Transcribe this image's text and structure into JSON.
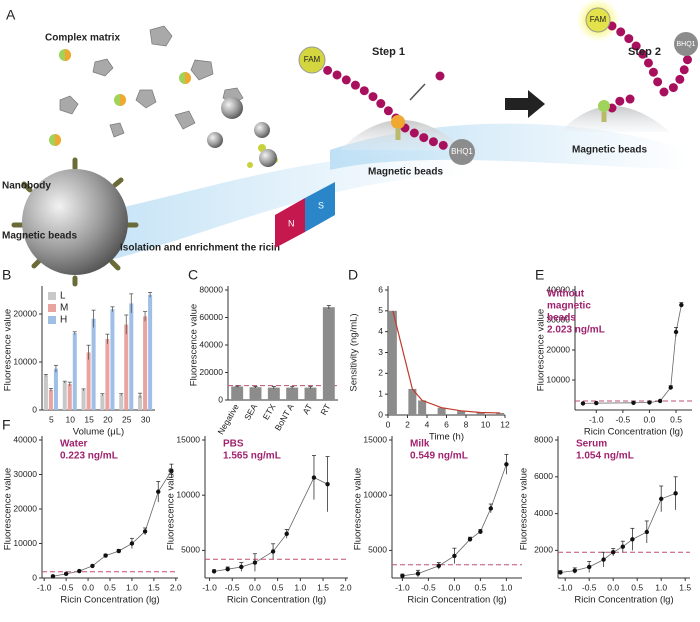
{
  "illustration": {
    "panel": "A",
    "complex_matrix": "Complex matrix",
    "nanobody": "Nanobody",
    "magnetic_beads_left": "Magnetic beads",
    "isolation": "Isolation and enrichment the ricin",
    "step1": "Step 1",
    "step2": "Step 2",
    "fam": "FAM",
    "bhq1": "BHQ1",
    "beads_label": "Magnetic beads",
    "magnet_n": "N",
    "magnet_s": "S"
  },
  "chart_data": [
    {
      "type": "grouped_bar",
      "panel": "B",
      "ylabel": "Fluorescence value",
      "xlabel": "Volume (μL)",
      "categories": [
        "5",
        "10",
        "15",
        "20",
        "25",
        "30"
      ],
      "ylim": [
        0,
        25000
      ],
      "yticks": [
        0,
        10000,
        20000
      ],
      "legend": "top-left",
      "series": [
        {
          "name": "L",
          "color": "#c8c8c8",
          "values": [
            7200,
            5800,
            4200,
            3200,
            3200,
            3000
          ],
          "errors": [
            200,
            200,
            200,
            200,
            200,
            500
          ]
        },
        {
          "name": "M",
          "color": "#e9a3a0",
          "values": [
            4200,
            5400,
            12000,
            14800,
            17800,
            19500
          ],
          "errors": [
            300,
            400,
            1500,
            1000,
            2000,
            1000
          ]
        },
        {
          "name": "H",
          "color": "#9fbfe6",
          "values": [
            8600,
            16000,
            19000,
            21000,
            22200,
            24000
          ],
          "errors": [
            700,
            300,
            1800,
            500,
            2000,
            500
          ]
        }
      ]
    },
    {
      "type": "bar",
      "panel": "C",
      "ylabel": "Fluorescence value",
      "categories": [
        "Negative",
        "SEA",
        "ETX",
        "BoNT A",
        "AT",
        "RT"
      ],
      "values": [
        9800,
        9300,
        9000,
        9000,
        9000,
        67500
      ],
      "errors": [
        400,
        500,
        800,
        700,
        700,
        1200
      ],
      "color": "#8c8c8c",
      "ylim": [
        0,
        80000
      ],
      "yticks": [
        0,
        20000,
        40000,
        60000,
        80000
      ],
      "threshold": 10500,
      "threshold_color": "#c0506e"
    },
    {
      "type": "bar_line",
      "panel": "D",
      "ylabel": "Sensitivity (ng/mL)",
      "xlabel": "Time (h)",
      "x": [
        0.5,
        2.5,
        3.5,
        5.5,
        7.5,
        9.5,
        11.5
      ],
      "values": [
        5.0,
        1.25,
        0.7,
        0.35,
        0.2,
        0.12,
        0.1
      ],
      "color": "#8c8c8c",
      "line_color": "#c0392b",
      "xlim": [
        0,
        12
      ],
      "xticks": [
        0,
        2,
        4,
        6,
        8,
        10,
        12
      ],
      "ylim": [
        0,
        6
      ],
      "yticks": [
        0,
        1,
        2,
        3,
        4,
        5,
        6
      ]
    },
    {
      "type": "scatter",
      "panel": "E",
      "ylabel": "Fluorescence value",
      "xlabel": "Ricin Concentration (lg)",
      "annotation": [
        "Without",
        "magnetic",
        "beads",
        "2.023 ng/mL"
      ],
      "annotation_color": "#a0226e",
      "color": "#111",
      "line_color": "#666",
      "threshold": 3000,
      "threshold_color": "#c0506e",
      "x": [
        -1.25,
        -1.0,
        -0.3,
        0.0,
        0.2,
        0.4,
        0.5,
        0.6
      ],
      "values": [
        2200,
        2300,
        2400,
        2500,
        3000,
        7500,
        26000,
        35000
      ],
      "errors": [
        200,
        200,
        200,
        200,
        300,
        600,
        1500,
        800
      ],
      "xlim": [
        -1.4,
        0.8
      ],
      "xticks": [
        {
          "value": -1.0,
          "label": "-1.0"
        },
        -0.5,
        {
          "value": 0.0,
          "label": "0.0"
        },
        0.5
      ],
      "ylim": [
        0,
        40000
      ],
      "yticks": [
        10000,
        20000,
        30000,
        40000
      ]
    },
    {
      "type": "scatter",
      "panel": "F",
      "ylabel": "Fluorescence value",
      "xlabel": "Ricin Concentration (lg)",
      "annotation": [
        "Water",
        "0.223 ng/mL"
      ],
      "annotation_color": "#a0226e",
      "color": "#111",
      "line_color": "#666",
      "threshold": 1800,
      "threshold_color": "#c0506e",
      "x": [
        -0.8,
        -0.5,
        -0.2,
        0.1,
        0.4,
        0.7,
        1.0,
        1.3,
        1.6,
        1.9
      ],
      "values": [
        500,
        1200,
        2000,
        3500,
        6500,
        7800,
        10000,
        13500,
        25000,
        31000
      ],
      "errors": [
        200,
        200,
        300,
        300,
        400,
        500,
        1500,
        1000,
        3000,
        2000
      ],
      "xlim": [
        -1.05,
        2.05
      ],
      "xticks": [
        {
          "value": -1.0,
          "label": "-1.0"
        },
        -0.5,
        {
          "value": 0.0,
          "label": "0.0"
        },
        0.5,
        {
          "value": 1.0,
          "label": "1.0"
        },
        1.5,
        {
          "value": 2.0,
          "label": "2.0"
        }
      ],
      "ylim": [
        0,
        40000
      ],
      "yticks": [
        0,
        10000,
        20000,
        30000,
        40000
      ]
    },
    {
      "type": "scatter",
      "ylabel": "Fluorescence value",
      "xlabel": "Ricin Concentration (lg)",
      "annotation": [
        "PBS",
        "1.565 ng/mL"
      ],
      "annotation_color": "#a0226e",
      "color": "#111",
      "line_color": "#666",
      "threshold": 4200,
      "threshold_color": "#c0506e",
      "x": [
        -0.9,
        -0.6,
        -0.3,
        0.0,
        0.4,
        0.7,
        1.3,
        1.6
      ],
      "values": [
        3100,
        3300,
        3500,
        3900,
        4900,
        6500,
        11600,
        11000
      ],
      "errors": [
        150,
        200,
        400,
        800,
        700,
        400,
        2000,
        2500
      ],
      "xlim": [
        -1.1,
        2.05
      ],
      "xticks": [
        {
          "value": -1.0,
          "label": "-1.0"
        },
        -0.5,
        {
          "value": 0.0,
          "label": "0.0"
        },
        0.5,
        {
          "value": 1.0,
          "label": "1.0"
        },
        1.5,
        {
          "value": 2.0,
          "label": "2.0"
        }
      ],
      "ylim": [
        2500,
        15000
      ],
      "yticks": [
        5000,
        10000,
        15000
      ]
    },
    {
      "type": "scatter",
      "ylabel": "Fluorescence value",
      "xlabel": "Ricin Concentration (lg)",
      "annotation": [
        "Milk",
        "0.549 ng/mL"
      ],
      "annotation_color": "#a0226e",
      "color": "#111",
      "line_color": "#666",
      "threshold": 3700,
      "threshold_color": "#c0506e",
      "x": [
        -1.0,
        -0.7,
        -0.3,
        0.0,
        0.3,
        0.5,
        0.7,
        1.0
      ],
      "values": [
        2700,
        2900,
        3600,
        4500,
        6000,
        6700,
        8800,
        12800
      ],
      "errors": [
        150,
        300,
        300,
        700,
        200,
        200,
        400,
        900
      ],
      "xlim": [
        -1.2,
        1.3
      ],
      "xticks": [
        {
          "value": -1.0,
          "label": "-1.0"
        },
        -0.5,
        {
          "value": 0.0,
          "label": "0.0"
        },
        0.5,
        {
          "value": 1.0,
          "label": "1.0"
        }
      ],
      "ylim": [
        2500,
        15000
      ],
      "yticks": [
        5000,
        10000,
        15000
      ]
    },
    {
      "type": "scatter",
      "ylabel": "Fluorescence value",
      "xlabel": "Ricin Concentration (lg)",
      "annotation": [
        "Serum",
        "1.054 ng/mL"
      ],
      "annotation_color": "#a0226e",
      "color": "#111",
      "line_color": "#666",
      "threshold": 1900,
      "threshold_color": "#c0506e",
      "x": [
        -1.1,
        -0.8,
        -0.5,
        -0.2,
        0.0,
        0.2,
        0.4,
        0.7,
        1.0,
        1.3
      ],
      "values": [
        800,
        900,
        1100,
        1500,
        1900,
        2200,
        2600,
        3000,
        4800,
        5100
      ],
      "errors": [
        100,
        150,
        300,
        400,
        200,
        300,
        600,
        600,
        700,
        900
      ],
      "xlim": [
        -1.15,
        1.6
      ],
      "xticks": [
        {
          "value": -1.0,
          "label": "-1.0"
        },
        -0.5,
        {
          "value": 0.0,
          "label": "0.0"
        },
        0.5,
        {
          "value": 1.0,
          "label": "1.0"
        },
        1.5
      ],
      "ylim": [
        500,
        8000
      ],
      "yticks": [
        2000,
        4000,
        6000,
        8000
      ]
    }
  ]
}
